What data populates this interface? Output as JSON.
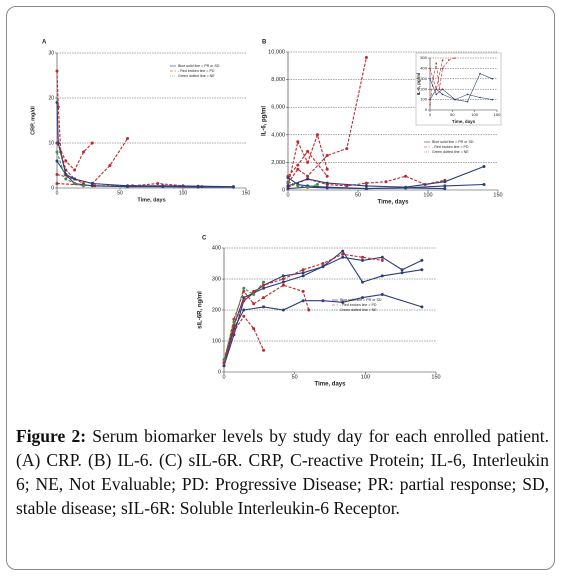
{
  "chart_data": [
    {
      "type": "line",
      "label": "A",
      "y_label": "CRP, mg/dl",
      "x_label": "Time, days",
      "legend": [
        "Blue solid line = PR or SD",
        "- Red broken line = PD",
        "Green dotted line = NE"
      ],
      "grid": true,
      "xlim": [
        0,
        150
      ],
      "xticks": [
        0,
        50,
        100,
        150
      ],
      "ylim": [
        0,
        30
      ],
      "yticks": [
        0,
        10,
        20,
        30
      ],
      "series": [
        {
          "color": "#c0282d",
          "dash": true,
          "x": [
            0,
            1,
            3,
            7,
            14,
            21
          ],
          "values": [
            26,
            18,
            8,
            4,
            2,
            1
          ]
        },
        {
          "color": "#c0282d",
          "dash": true,
          "x": [
            0,
            7,
            14,
            21,
            28
          ],
          "values": [
            10,
            6,
            4,
            8,
            10
          ]
        },
        {
          "color": "#c0282d",
          "dash": true,
          "x": [
            0,
            14,
            28,
            42,
            56
          ],
          "values": [
            3,
            2,
            1,
            5,
            11
          ]
        },
        {
          "color": "#c0282d",
          "dash": true,
          "x": [
            0,
            30,
            60,
            80,
            100,
            115
          ],
          "values": [
            1,
            0.5,
            0.5,
            1,
            0.5,
            0.3
          ]
        },
        {
          "color": "#2c3d78",
          "dash": false,
          "x": [
            0,
            1,
            7,
            14,
            28,
            56,
            84,
            112,
            140
          ],
          "values": [
            19,
            10,
            3,
            2,
            1,
            0.5,
            0.5,
            0.4,
            0.3
          ]
        },
        {
          "color": "#2c3d78",
          "dash": false,
          "x": [
            0,
            7,
            14,
            28,
            56,
            84,
            112,
            140
          ],
          "values": [
            6,
            3,
            1,
            0.5,
            0.3,
            0.3,
            0.2,
            0.2
          ]
        },
        {
          "color": "#4a8a4a",
          "dash": true,
          "x": [
            0,
            7,
            14,
            21
          ],
          "values": [
            8,
            2,
            1,
            0.5
          ]
        }
      ]
    },
    {
      "type": "line",
      "label": "B",
      "y_label": "IL-6, pg/ml",
      "x_label": "Time, days",
      "legend": [
        "Blue solid line = PR or SD",
        "- Red broken line = PD",
        "Green dotted line = NE"
      ],
      "grid": true,
      "xlim": [
        0,
        150
      ],
      "xticks": [
        0,
        50,
        100,
        150
      ],
      "ylim": [
        0,
        10000
      ],
      "yticks": [
        0,
        {
          "value": 2000,
          "label": "2,000"
        },
        {
          "value": 4000,
          "label": "4,000"
        },
        {
          "value": 6000,
          "label": "6,000"
        },
        {
          "value": 8000,
          "label": "8,000"
        },
        {
          "value": 10000,
          "label": "10,000"
        }
      ],
      "series": [
        {
          "color": "#c0282d",
          "dash": true,
          "x": [
            0,
            7,
            14,
            28,
            42,
            56
          ],
          "values": [
            500,
            1500,
            1000,
            2500,
            3000,
            9600
          ]
        },
        {
          "color": "#c0282d",
          "dash": true,
          "x": [
            0,
            7,
            14,
            21,
            28
          ],
          "values": [
            300,
            3500,
            2000,
            4000,
            1500
          ]
        },
        {
          "color": "#c0282d",
          "dash": true,
          "x": [
            0,
            14,
            28,
            42,
            56,
            70,
            84,
            98,
            112
          ],
          "values": [
            200,
            800,
            400,
            300,
            500,
            600,
            1000,
            400,
            700
          ]
        },
        {
          "color": "#c0282d",
          "dash": true,
          "x": [
            0,
            7,
            14,
            28
          ],
          "values": [
            1000,
            1800,
            2800,
            1000
          ]
        },
        {
          "color": "#2c3d78",
          "dash": false,
          "x": [
            0,
            14,
            28,
            56,
            84,
            112,
            140
          ],
          "values": [
            300,
            800,
            500,
            300,
            200,
            600,
            1700
          ]
        },
        {
          "color": "#2c3d78",
          "dash": false,
          "x": [
            0,
            14,
            28,
            56,
            84,
            112,
            140
          ],
          "values": [
            100,
            200,
            150,
            100,
            150,
            300,
            400
          ]
        },
        {
          "color": "#2c3d78",
          "dash": false,
          "x": [
            0,
            7,
            14,
            28,
            56,
            84,
            112
          ],
          "values": [
            900,
            400,
            300,
            200,
            100,
            150,
            100
          ]
        },
        {
          "color": "#4a8a4a",
          "dash": true,
          "x": [
            0,
            7,
            14,
            21
          ],
          "values": [
            600,
            300,
            200,
            400
          ]
        }
      ]
    },
    {
      "type": "line",
      "y_label": "IL-6, pg/ml",
      "x_label": "Time, days",
      "grid": true,
      "xlim": [
        0,
        150
      ],
      "xticks": [
        0,
        50,
        100,
        150
      ],
      "ylim": [
        0,
        500
      ],
      "yticks": [
        0,
        100,
        200,
        300,
        400,
        500
      ],
      "series": [
        {
          "color": "#2c3d78",
          "dash": false,
          "x": [
            0,
            14,
            28,
            56,
            84,
            112,
            140
          ],
          "values": [
            300,
            150,
            200,
            100,
            80,
            350,
            300
          ]
        },
        {
          "color": "#2c3d78",
          "dash": false,
          "x": [
            0,
            14,
            28,
            56,
            84,
            112,
            140
          ],
          "values": [
            100,
            200,
            150,
            100,
            150,
            120,
            100
          ]
        },
        {
          "color": "#c0282d",
          "dash": true,
          "x": [
            0,
            7,
            14,
            21,
            28,
            42,
            56
          ],
          "values": [
            50,
            300,
            450,
            200,
            400,
            480,
            500
          ]
        },
        {
          "color": "#c0282d",
          "dash": true,
          "x": [
            0,
            14,
            28
          ],
          "values": [
            400,
            200,
            480
          ]
        }
      ]
    },
    {
      "type": "line",
      "label": "C",
      "y_label": "sIL-6R, ng/ml",
      "x_label": "Time, days",
      "legend": [
        "Blue solid line = PR or SD",
        "- Red broken line = PD",
        "Green dotted line = NE"
      ],
      "grid": true,
      "xlim": [
        0,
        150
      ],
      "xticks": [
        0,
        50,
        100,
        150
      ],
      "ylim": [
        0,
        400
      ],
      "yticks": [
        0,
        100,
        200,
        300,
        400
      ],
      "series": [
        {
          "color": "#2c3d78",
          "dash": false,
          "x": [
            0,
            7,
            14,
            28,
            42,
            56,
            70,
            84,
            98,
            112,
            126,
            140
          ],
          "values": [
            30,
            150,
            240,
            270,
            290,
            310,
            340,
            370,
            360,
            370,
            330,
            360
          ]
        },
        {
          "color": "#2c3d78",
          "dash": false,
          "x": [
            0,
            7,
            14,
            28,
            42,
            56,
            70,
            84,
            98,
            112,
            140
          ],
          "values": [
            20,
            140,
            200,
            210,
            200,
            230,
            230,
            225,
            240,
            250,
            210
          ]
        },
        {
          "color": "#2c3d78",
          "dash": false,
          "x": [
            0,
            7,
            14,
            28,
            42,
            56,
            70,
            84,
            98,
            112,
            126,
            140
          ],
          "values": [
            20,
            120,
            230,
            280,
            310,
            320,
            340,
            390,
            290,
            310,
            320,
            330
          ]
        },
        {
          "color": "#c0282d",
          "dash": true,
          "x": [
            0,
            7,
            14,
            21,
            28
          ],
          "values": [
            30,
            130,
            180,
            140,
            70
          ]
        },
        {
          "color": "#c0282d",
          "dash": true,
          "x": [
            0,
            7,
            14,
            21,
            28,
            42,
            56,
            70,
            84,
            98,
            112
          ],
          "values": [
            40,
            150,
            230,
            260,
            280,
            300,
            330,
            350,
            380,
            370,
            360
          ]
        },
        {
          "color": "#c0282d",
          "dash": true,
          "x": [
            0,
            7,
            14,
            21,
            28,
            42,
            56,
            60
          ],
          "values": [
            30,
            170,
            260,
            220,
            240,
            280,
            260,
            200
          ]
        },
        {
          "color": "#4a8a4a",
          "dash": true,
          "x": [
            0,
            7,
            14,
            21,
            28
          ],
          "values": [
            40,
            160,
            270,
            250,
            290
          ]
        }
      ]
    }
  ],
  "caption": {
    "label": "Figure 2:",
    "text": "Serum biomarker levels by study day for each enrolled patient. (A) CRP. (B) IL-6. (C) sIL-6R. CRP, C-reactive Protein; IL-6, Interleukin 6; NE, Not Evaluable; PD: Progressive Disease; PR: partial response; SD, stable disease; sIL-6R: Soluble Interleukin-6 Receptor."
  }
}
